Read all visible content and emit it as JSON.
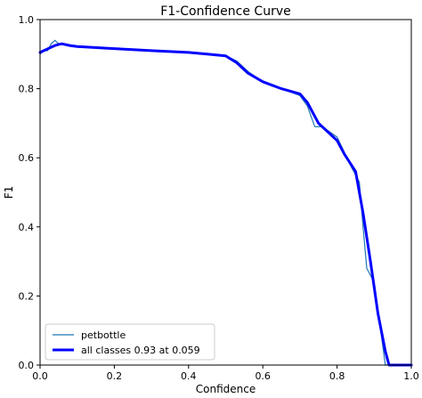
{
  "chart_data": {
    "type": "line",
    "title": "F1-Confidence Curve",
    "xlabel": "Confidence",
    "ylabel": "F1",
    "xlim": [
      0,
      1
    ],
    "ylim": [
      0,
      1
    ],
    "x_ticks": [
      "0.0",
      "0.2",
      "0.4",
      "0.6",
      "0.8",
      "1.0"
    ],
    "y_ticks": [
      "0.0",
      "0.2",
      "0.4",
      "0.6",
      "0.8",
      "1.0"
    ],
    "grid": false,
    "legend_position": "lower-left",
    "series": [
      {
        "name": "petbottle",
        "color": "#1f77b4",
        "x": [
          0.0,
          0.01,
          0.02,
          0.03,
          0.04,
          0.05,
          0.06,
          0.08,
          0.1,
          0.2,
          0.3,
          0.4,
          0.45,
          0.5,
          0.53,
          0.56,
          0.6,
          0.65,
          0.7,
          0.72,
          0.74,
          0.76,
          0.8,
          0.84,
          0.86,
          0.87,
          0.88,
          0.9,
          0.92,
          0.93,
          0.935,
          0.94,
          1.0
        ],
        "y": [
          0.9,
          0.91,
          0.91,
          0.93,
          0.94,
          0.93,
          0.93,
          0.925,
          0.92,
          0.916,
          0.91,
          0.905,
          0.9,
          0.895,
          0.88,
          0.85,
          0.82,
          0.8,
          0.78,
          0.75,
          0.69,
          0.69,
          0.66,
          0.57,
          0.53,
          0.4,
          0.28,
          0.24,
          0.08,
          0.0,
          0.0,
          0.0,
          0.0
        ]
      },
      {
        "name": "all classes 0.93 at 0.059",
        "color": "#0000ff",
        "x": [
          0.0,
          0.01,
          0.02,
          0.03,
          0.04,
          0.05,
          0.059,
          0.08,
          0.1,
          0.2,
          0.3,
          0.4,
          0.45,
          0.5,
          0.53,
          0.56,
          0.6,
          0.65,
          0.7,
          0.72,
          0.75,
          0.8,
          0.82,
          0.85,
          0.87,
          0.89,
          0.91,
          0.93,
          0.94,
          0.95,
          1.0
        ],
        "y": [
          0.905,
          0.91,
          0.915,
          0.92,
          0.925,
          0.928,
          0.93,
          0.925,
          0.922,
          0.916,
          0.91,
          0.905,
          0.9,
          0.895,
          0.875,
          0.845,
          0.82,
          0.8,
          0.785,
          0.76,
          0.7,
          0.65,
          0.61,
          0.56,
          0.44,
          0.3,
          0.15,
          0.04,
          0.0,
          0.0,
          0.0
        ]
      }
    ]
  }
}
